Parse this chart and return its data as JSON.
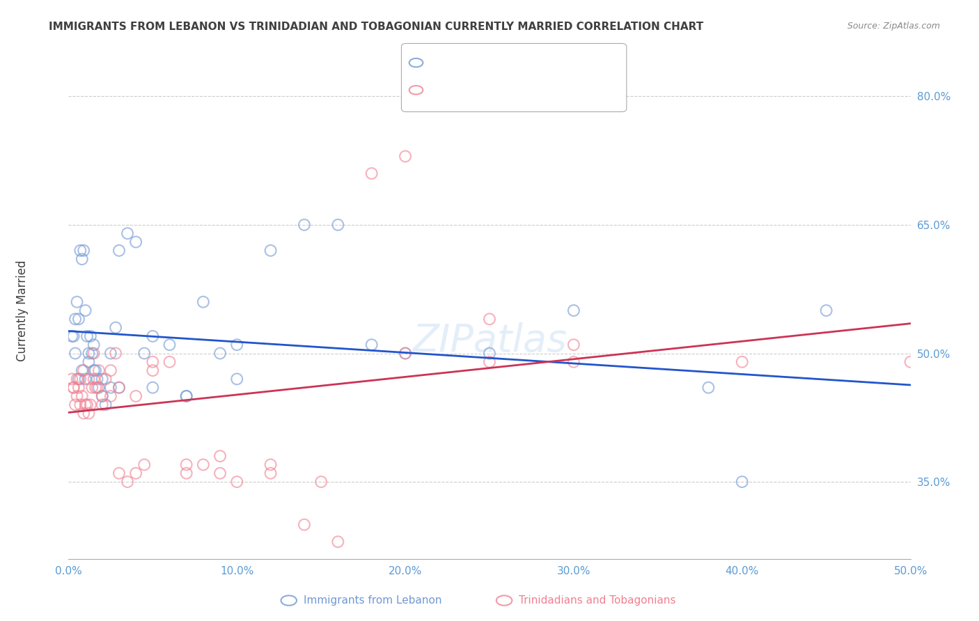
{
  "title": "IMMIGRANTS FROM LEBANON VS TRINIDADIAN AND TOBAGONIAN CURRENTLY MARRIED CORRELATION CHART",
  "source": "Source: ZipAtlas.com",
  "ylabel": "Currently Married",
  "yticks": [
    0.35,
    0.5,
    0.65,
    0.8
  ],
  "ytick_labels": [
    "35.0%",
    "50.0%",
    "65.0%",
    "80.0%"
  ],
  "xticks": [
    0.0,
    0.1,
    0.2,
    0.3,
    0.4,
    0.5
  ],
  "xtick_labels": [
    "0.0%",
    "10.0%",
    "20.0%",
    "30.0%",
    "40.0%",
    "50.0%"
  ],
  "xlim": [
    0.0,
    0.5
  ],
  "ylim": [
    0.26,
    0.84
  ],
  "legend_label1": "Immigrants from Lebanon",
  "legend_label2": "Trinidadians and Tobagonians",
  "blue_color": "#7098d4",
  "pink_color": "#f08090",
  "blue_trend_color": "#2255cc",
  "pink_trend_color": "#cc3355",
  "blue_x": [
    0.002,
    0.004,
    0.005,
    0.006,
    0.007,
    0.008,
    0.009,
    0.01,
    0.011,
    0.012,
    0.013,
    0.014,
    0.015,
    0.016,
    0.017,
    0.018,
    0.02,
    0.022,
    0.025,
    0.028,
    0.03,
    0.035,
    0.04,
    0.045,
    0.05,
    0.06,
    0.07,
    0.08,
    0.09,
    0.1,
    0.12,
    0.14,
    0.16,
    0.18,
    0.2,
    0.25,
    0.3,
    0.4,
    0.45,
    0.003,
    0.004,
    0.006,
    0.008,
    0.01,
    0.012,
    0.015,
    0.02,
    0.025,
    0.03,
    0.05,
    0.07,
    0.1,
    0.38
  ],
  "blue_y": [
    0.52,
    0.54,
    0.56,
    0.54,
    0.62,
    0.61,
    0.62,
    0.55,
    0.52,
    0.5,
    0.52,
    0.5,
    0.51,
    0.48,
    0.47,
    0.46,
    0.45,
    0.44,
    0.5,
    0.53,
    0.62,
    0.64,
    0.63,
    0.5,
    0.52,
    0.51,
    0.45,
    0.56,
    0.5,
    0.51,
    0.62,
    0.65,
    0.65,
    0.51,
    0.5,
    0.5,
    0.55,
    0.35,
    0.55,
    0.52,
    0.5,
    0.47,
    0.48,
    0.47,
    0.49,
    0.48,
    0.47,
    0.46,
    0.46,
    0.46,
    0.45,
    0.47,
    0.46
  ],
  "pink_x": [
    0.002,
    0.003,
    0.004,
    0.005,
    0.006,
    0.007,
    0.008,
    0.009,
    0.01,
    0.011,
    0.012,
    0.013,
    0.014,
    0.015,
    0.016,
    0.017,
    0.018,
    0.02,
    0.022,
    0.025,
    0.028,
    0.03,
    0.035,
    0.04,
    0.045,
    0.05,
    0.06,
    0.07,
    0.08,
    0.09,
    0.1,
    0.12,
    0.14,
    0.16,
    0.18,
    0.2,
    0.25,
    0.3,
    0.003,
    0.005,
    0.007,
    0.009,
    0.012,
    0.015,
    0.02,
    0.025,
    0.03,
    0.04,
    0.05,
    0.07,
    0.09,
    0.12,
    0.15,
    0.2,
    0.25,
    0.3,
    0.4,
    0.5
  ],
  "pink_y": [
    0.47,
    0.46,
    0.44,
    0.45,
    0.46,
    0.44,
    0.45,
    0.43,
    0.44,
    0.44,
    0.43,
    0.44,
    0.46,
    0.47,
    0.46,
    0.46,
    0.48,
    0.45,
    0.47,
    0.48,
    0.5,
    0.36,
    0.35,
    0.36,
    0.37,
    0.48,
    0.49,
    0.37,
    0.37,
    0.38,
    0.35,
    0.36,
    0.3,
    0.28,
    0.71,
    0.73,
    0.54,
    0.51,
    0.46,
    0.47,
    0.47,
    0.48,
    0.47,
    0.5,
    0.44,
    0.45,
    0.46,
    0.45,
    0.49,
    0.36,
    0.36,
    0.37,
    0.35,
    0.5,
    0.49,
    0.49,
    0.49,
    0.49
  ],
  "background_color": "#ffffff",
  "grid_color": "#cccccc",
  "axis_label_color": "#5b9bd5",
  "title_color": "#404040"
}
